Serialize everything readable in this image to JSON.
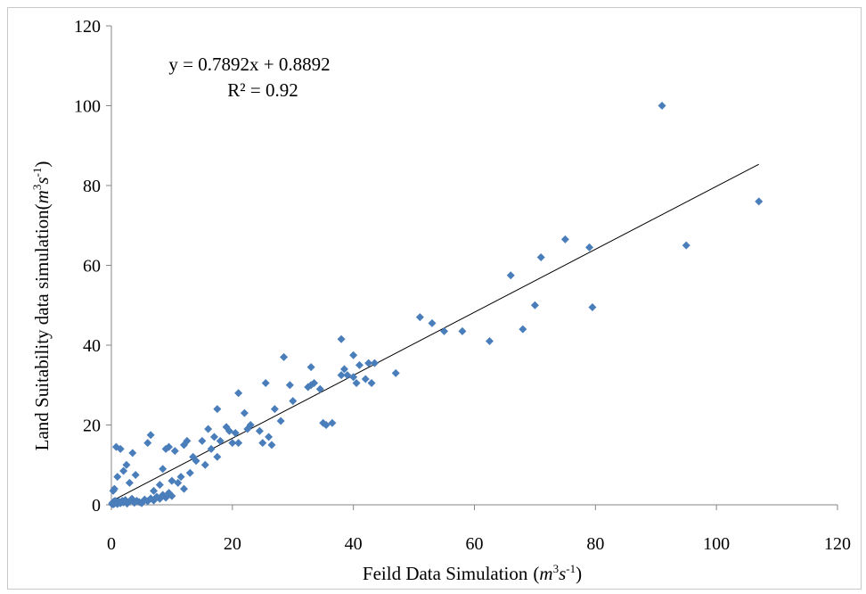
{
  "chart_data": {
    "type": "scatter",
    "title": "",
    "xlabel": "Feild Data Simulation",
    "xlabel_unit_base": "m",
    "xlabel_unit_exp1": "3",
    "xlabel_unit_mid": "s",
    "xlabel_unit_exp2": "-1",
    "ylabel": "Land Suitability data simulation",
    "ylabel_unit_base": "m",
    "ylabel_unit_exp1": "3",
    "ylabel_unit_mid": "s",
    "ylabel_unit_exp2": "-1",
    "xlim": [
      0,
      120
    ],
    "ylim": [
      0,
      120
    ],
    "x_ticks": [
      0,
      20,
      40,
      60,
      80,
      100,
      120
    ],
    "y_ticks": [
      0,
      20,
      40,
      60,
      80,
      100,
      120
    ],
    "grid": false,
    "marker": "diamond",
    "marker_color": "#4a7ebb",
    "trendline": {
      "slope": 0.7892,
      "intercept": 0.8892,
      "x_range": [
        0,
        107
      ]
    },
    "equation_text": "y = 0.7892x + 0.8892",
    "r2_text": "R² = 0.92",
    "points": [
      [
        0.1,
        0.2
      ],
      [
        0.2,
        0.5
      ],
      [
        0.3,
        0.1
      ],
      [
        0.4,
        0.8
      ],
      [
        0.5,
        0.3
      ],
      [
        0.6,
        1.0
      ],
      [
        0.8,
        0.5
      ],
      [
        1.0,
        0.2
      ],
      [
        1.2,
        0.9
      ],
      [
        1.5,
        0.4
      ],
      [
        1.8,
        1.0
      ],
      [
        2.0,
        0.6
      ],
      [
        2.3,
        1.2
      ],
      [
        2.6,
        0.3
      ],
      [
        3.0,
        0.8
      ],
      [
        3.4,
        1.5
      ],
      [
        3.8,
        0.5
      ],
      [
        4.2,
        1.0
      ],
      [
        4.6,
        0.7
      ],
      [
        5.0,
        0.4
      ],
      [
        5.5,
        1.3
      ],
      [
        6.0,
        0.9
      ],
      [
        6.5,
        1.6
      ],
      [
        7.0,
        1.1
      ],
      [
        7.5,
        2.0
      ],
      [
        8.0,
        1.5
      ],
      [
        8.5,
        2.5
      ],
      [
        9.0,
        1.8
      ],
      [
        9.5,
        3.0
      ],
      [
        10.0,
        2.2
      ],
      [
        0.3,
        3.5
      ],
      [
        0.5,
        4.0
      ],
      [
        0.8,
        14.5
      ],
      [
        1.5,
        14.0
      ],
      [
        1.0,
        7.0
      ],
      [
        2.0,
        8.5
      ],
      [
        2.5,
        10.0
      ],
      [
        3.5,
        13.0
      ],
      [
        4.0,
        7.5
      ],
      [
        3.0,
        5.5
      ],
      [
        6.0,
        15.5
      ],
      [
        6.5,
        17.5
      ],
      [
        7.0,
        3.5
      ],
      [
        8.0,
        5.0
      ],
      [
        8.5,
        9.0
      ],
      [
        9.0,
        14.0
      ],
      [
        9.5,
        14.5
      ],
      [
        10.0,
        6.0
      ],
      [
        10.5,
        13.5
      ],
      [
        11.0,
        5.5
      ],
      [
        11.5,
        7.0
      ],
      [
        12.0,
        4.0
      ],
      [
        12.0,
        15.0
      ],
      [
        12.5,
        16.0
      ],
      [
        13.0,
        8.0
      ],
      [
        13.5,
        12.0
      ],
      [
        14.0,
        11.0
      ],
      [
        15.0,
        16.0
      ],
      [
        15.5,
        10.0
      ],
      [
        16.0,
        19.0
      ],
      [
        16.5,
        14.0
      ],
      [
        17.0,
        17.0
      ],
      [
        17.5,
        12.0
      ],
      [
        17.5,
        24.0
      ],
      [
        18.0,
        16.0
      ],
      [
        19.0,
        19.5
      ],
      [
        19.5,
        18.5
      ],
      [
        20.0,
        15.5
      ],
      [
        20.5,
        18.0
      ],
      [
        21.0,
        15.5
      ],
      [
        21.0,
        28.0
      ],
      [
        22.0,
        23.0
      ],
      [
        22.5,
        19.0
      ],
      [
        23.0,
        20.0
      ],
      [
        24.5,
        18.5
      ],
      [
        25.0,
        15.5
      ],
      [
        25.5,
        30.5
      ],
      [
        26.0,
        17.0
      ],
      [
        26.5,
        15.0
      ],
      [
        27.0,
        24.0
      ],
      [
        28.0,
        21.0
      ],
      [
        28.5,
        37.0
      ],
      [
        29.5,
        30.0
      ],
      [
        30.0,
        26.0
      ],
      [
        32.5,
        29.5
      ],
      [
        33.0,
        30.0
      ],
      [
        33.0,
        34.5
      ],
      [
        33.5,
        30.5
      ],
      [
        34.5,
        29.0
      ],
      [
        35.0,
        20.5
      ],
      [
        35.5,
        20.0
      ],
      [
        36.5,
        20.5
      ],
      [
        38.0,
        41.5
      ],
      [
        38.0,
        32.5
      ],
      [
        38.5,
        34.0
      ],
      [
        39.0,
        32.5
      ],
      [
        40.0,
        32.0
      ],
      [
        40.0,
        37.5
      ],
      [
        40.5,
        30.5
      ],
      [
        41.0,
        35.0
      ],
      [
        42.0,
        31.5
      ],
      [
        42.5,
        35.5
      ],
      [
        43.0,
        30.5
      ],
      [
        43.5,
        35.5
      ],
      [
        47.0,
        33.0
      ],
      [
        51.0,
        47.0
      ],
      [
        53.0,
        45.5
      ],
      [
        55.0,
        43.5
      ],
      [
        58.0,
        43.5
      ],
      [
        62.5,
        41.0
      ],
      [
        66.0,
        57.5
      ],
      [
        68.0,
        44.0
      ],
      [
        70.0,
        50.0
      ],
      [
        71.0,
        62.0
      ],
      [
        75.0,
        66.5
      ],
      [
        79.0,
        64.5
      ],
      [
        79.5,
        49.5
      ],
      [
        91.0,
        100.0
      ],
      [
        95.0,
        65.0
      ],
      [
        107.0,
        76.0
      ]
    ]
  }
}
